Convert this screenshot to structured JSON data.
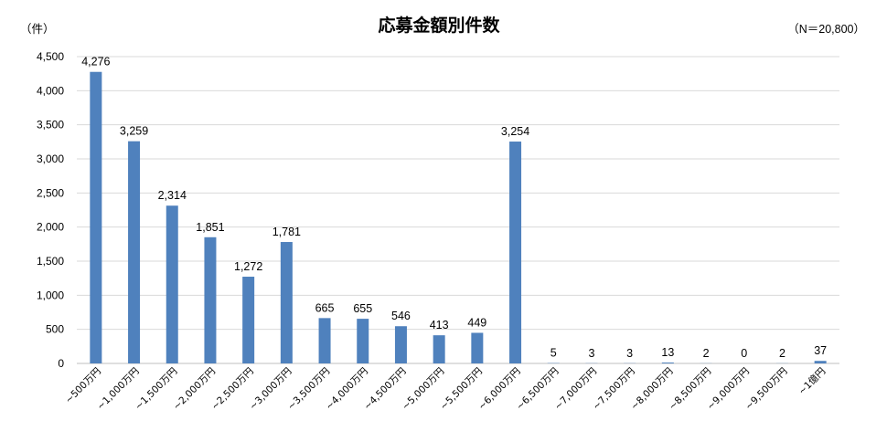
{
  "chart_data": {
    "type": "bar",
    "title": "応募金額別件数",
    "unit_label": "（件）",
    "note": "（N＝20,800）",
    "categories": [
      "~500万円",
      "~1,000万円",
      "~1,500万円",
      "~2,000万円",
      "~2,500万円",
      "~3,000万円",
      "~3,500万円",
      "~4,000万円",
      "~4,500万円",
      "~5,000万円",
      "~5,500万円",
      "~6,000万円",
      "~6,500万円",
      "~7,000万円",
      "~7,500万円",
      "~8,000万円",
      "~8,500万円",
      "~9,000万円",
      "~9,500万円",
      "~1億円"
    ],
    "values": [
      4276,
      3259,
      2314,
      1851,
      1272,
      1781,
      665,
      655,
      546,
      413,
      449,
      3254,
      5,
      3,
      3,
      13,
      2,
      0,
      2,
      37
    ],
    "value_labels": [
      "4,276",
      "3,259",
      "2,314",
      "1,851",
      "1,272",
      "1,781",
      "665",
      "655",
      "546",
      "413",
      "449",
      "3,254",
      "5",
      "3",
      "3",
      "13",
      "2",
      "0",
      "2",
      "37"
    ],
    "ylim": [
      0,
      4500
    ],
    "yticks": [
      0,
      500,
      1000,
      1500,
      2000,
      2500,
      3000,
      3500,
      4000,
      4500
    ],
    "ytick_labels": [
      "0",
      "500",
      "1,000",
      "1,500",
      "2,000",
      "2,500",
      "3,000",
      "3,500",
      "4,000",
      "4,500"
    ],
    "grid": true,
    "bar_color": "#4f81bd"
  }
}
